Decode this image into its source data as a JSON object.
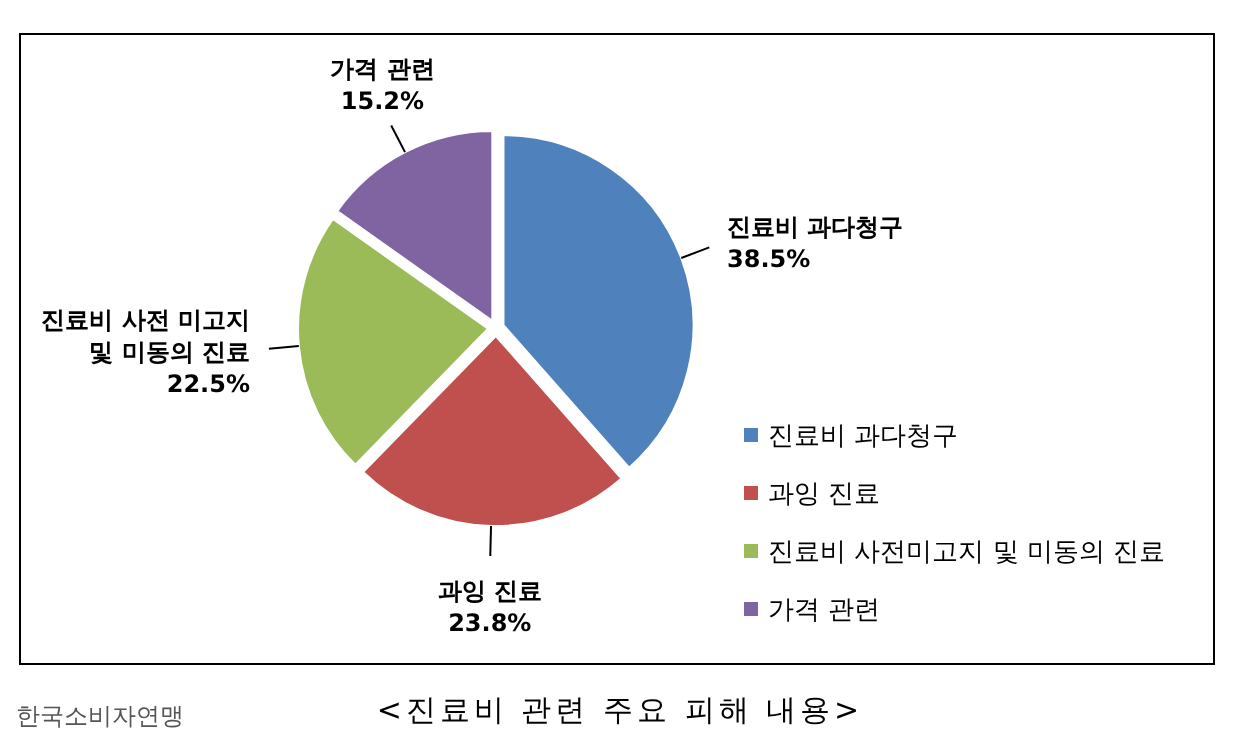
{
  "chart_data": {
    "type": "pie",
    "title": "<진료비 관련 주요 피해 내용>",
    "categories": [
      "진료비 과다청구",
      "과잉 진료",
      "진료비 사전미고지 및 미동의 진료",
      "가격 관련"
    ],
    "values": [
      38.5,
      23.8,
      22.5,
      15.2
    ],
    "colors": [
      "#4f81bd",
      "#c0504d",
      "#9bbb59",
      "#8064a2"
    ],
    "value_labels": [
      "진료비 과다청구\n38.5%",
      "과잉 진료\n23.8%",
      "진료비 사전 미고지\n및 미동의 진료\n22.5%",
      "가격 관련\n15.2%"
    ],
    "legend": "right",
    "annotations": [
      "한국소비자연맹"
    ]
  }
}
